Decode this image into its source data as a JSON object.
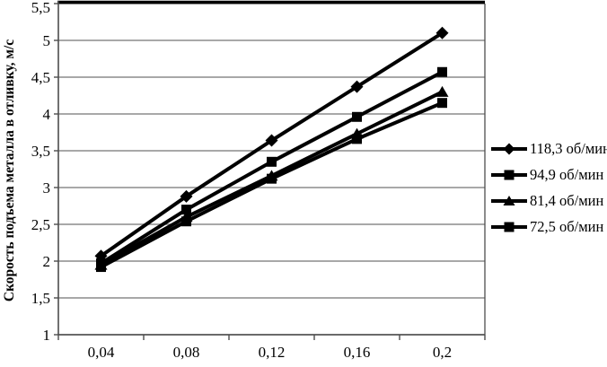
{
  "chart_data": {
    "type": "line",
    "title": "",
    "xlabel": "",
    "ylabel": "Скорость подъема металла в отливку, м/с",
    "ylim": [
      1,
      5.5
    ],
    "y_tick_step": 0.5,
    "y_ticklabels": [
      "1",
      "1,5",
      "2",
      "2,5",
      "3",
      "3,5",
      "4",
      "4,5",
      "5",
      "5,5"
    ],
    "x_ticklabels": [
      "0,04",
      "0,08",
      "0,12",
      "0,16",
      "0,2"
    ],
    "categories": [
      0.04,
      0.08,
      0.12,
      0.16,
      0.2
    ],
    "grid": "horizontal-on",
    "legend_position": "right",
    "line_color": "#000000",
    "gridline_color": "#8c8c8c",
    "axis_color": "#4d4d4d",
    "plot_top_border_color": "#000000",
    "series": [
      {
        "name": "118,3 об/мин",
        "marker": "diamond",
        "values": [
          2.07,
          2.88,
          3.64,
          4.37,
          5.1
        ]
      },
      {
        "name": "94,9 об/мин",
        "marker": "square",
        "values": [
          1.97,
          2.7,
          3.35,
          3.96,
          4.57
        ]
      },
      {
        "name": "81,4 об/мин",
        "marker": "triangle",
        "values": [
          1.95,
          2.6,
          3.16,
          3.73,
          4.3
        ]
      },
      {
        "name": "72,5 об/мин",
        "marker": "square",
        "values": [
          1.92,
          2.54,
          3.12,
          3.66,
          4.15
        ]
      }
    ]
  }
}
